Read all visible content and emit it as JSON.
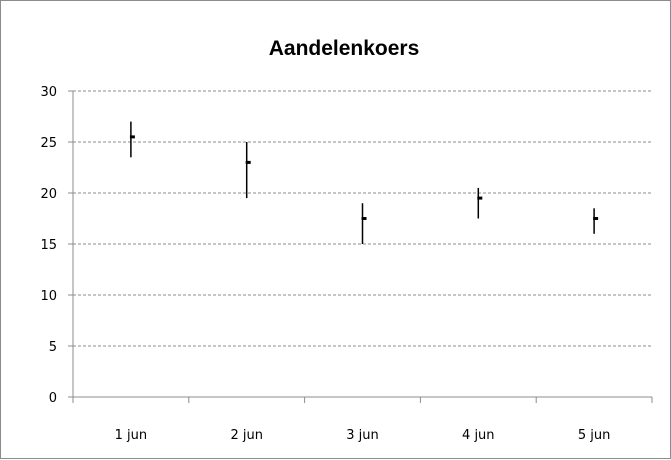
{
  "chart_data": {
    "type": "stock-hlc",
    "title": "Aandelenkoers",
    "categories": [
      "1 jun",
      "2 jun",
      "3 jun",
      "4 jun",
      "5 jun"
    ],
    "series": [
      {
        "high": 27,
        "low": 23.5,
        "close": 25.5
      },
      {
        "high": 25,
        "low": 19.5,
        "close": 23
      },
      {
        "high": 19,
        "low": 15,
        "close": 17.5
      },
      {
        "high": 20.5,
        "low": 17.5,
        "close": 19.5
      },
      {
        "high": 18.5,
        "low": 16,
        "close": 17.5
      }
    ],
    "ylim": [
      0,
      30
    ],
    "yticks": [
      "0",
      "5",
      "10",
      "15",
      "20",
      "25",
      "30"
    ],
    "grid": true,
    "legend": "none",
    "colors": {
      "bar": "#000000",
      "grid": "#8c8c8c",
      "axis": "#8c8c8c"
    }
  }
}
